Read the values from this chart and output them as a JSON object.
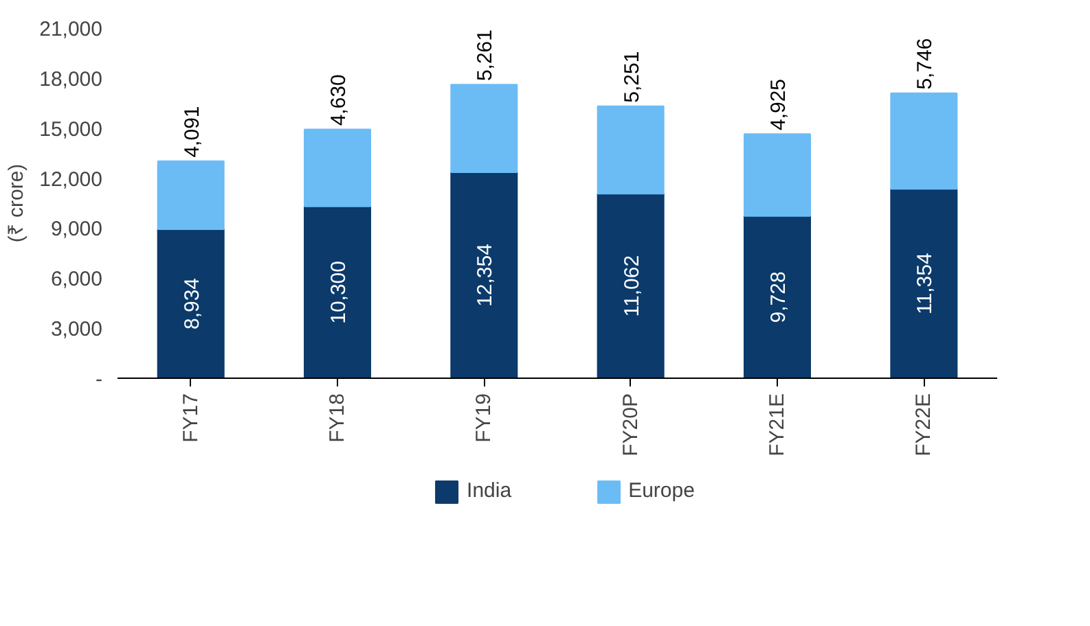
{
  "chart_data": {
    "type": "bar",
    "stacked": true,
    "ylabel": "(₹ crore)",
    "categories": [
      "FY17",
      "FY18",
      "FY19",
      "FY20P",
      "FY21E",
      "FY22E"
    ],
    "series": [
      {
        "name": "India",
        "color": "#0b3a6b",
        "values": [
          8934,
          10300,
          12354,
          11062,
          9728,
          11354
        ],
        "value_labels": [
          "8,934",
          "10,300",
          "12,354",
          "11,062",
          "9,728",
          "11,354"
        ]
      },
      {
        "name": "Europe",
        "color": "#6bbcf5",
        "values": [
          4091,
          4630,
          5261,
          5251,
          4925,
          5746
        ],
        "value_labels": [
          "4,091",
          "4,630",
          "5,261",
          "5,251",
          "4,925",
          "5,746"
        ]
      }
    ],
    "ylim": [
      0,
      21000
    ],
    "yticks": [
      {
        "value": 0,
        "label": "-"
      },
      {
        "value": 3000,
        "label": "3,000"
      },
      {
        "value": 6000,
        "label": "6,000"
      },
      {
        "value": 9000,
        "label": "9,000"
      },
      {
        "value": 12000,
        "label": "12,000"
      },
      {
        "value": 15000,
        "label": "15,000"
      },
      {
        "value": 18000,
        "label": "18,000"
      },
      {
        "value": 21000,
        "label": "21,000"
      }
    ],
    "legend": "bottom"
  }
}
